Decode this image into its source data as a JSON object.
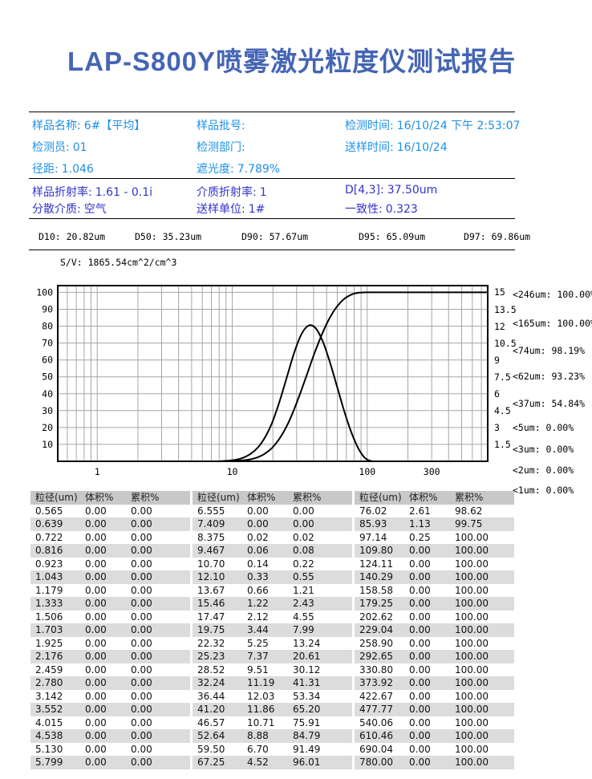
{
  "title": "LAP-S800Y喷雾激光粒度仪测试报告",
  "accent_colors": {
    "title_blue": "#4565b5",
    "info_azure": "#1d90e8",
    "info_indigo": "#3333cc"
  },
  "info_primary": {
    "color": "#1d90e8",
    "rows": [
      [
        {
          "label": "样品名称:",
          "value": "6#【平均】"
        },
        {
          "label": "样品批号:",
          "value": ""
        },
        {
          "label": "检测时间:",
          "value": "16/10/24 下午 2:53:07"
        }
      ],
      [
        {
          "label": "检测员:",
          "value": "01"
        },
        {
          "label": "检测部门:",
          "value": ""
        },
        {
          "label": "送样时间:",
          "value": "16/10/24"
        }
      ],
      [
        {
          "label": "径距:",
          "value": "1.046"
        },
        {
          "label": "遮光度:",
          "value": "7.789%"
        },
        null
      ]
    ]
  },
  "info_secondary": {
    "color": "#3333cc",
    "rows": [
      [
        {
          "label": "样品折射率:",
          "value": "1.61 - 0.1i"
        },
        {
          "label": "介质折射率:",
          "value": "1"
        },
        {
          "label": "D[4,3]:",
          "value": "37.50um"
        }
      ],
      [
        {
          "label": "分散介质:",
          "value": "空气"
        },
        {
          "label": "送样单位:",
          "value": "1#"
        },
        {
          "label": "一致性:",
          "value": "0.323"
        }
      ]
    ]
  },
  "d_values": [
    "D10: 20.82um",
    "D50: 35.23um",
    "D90: 57.67um",
    "D95: 65.09um",
    "D97: 69.86um"
  ],
  "chart_data": {
    "type": "line",
    "title": "",
    "sv_label": "S/V: 1865.54cm^2/cm^3",
    "x_scale": "log",
    "x_range": [
      0.51,
      780
    ],
    "x_tick_labels": [
      "1",
      "10",
      "100",
      "300"
    ],
    "x_tick_values": [
      1,
      10,
      100,
      300
    ],
    "grid": true,
    "left_axis": {
      "label": "累积%",
      "range": [
        0,
        104
      ],
      "ticks": [
        10,
        20,
        30,
        40,
        50,
        60,
        70,
        80,
        90,
        100
      ]
    },
    "right_axis": {
      "label": "体积%",
      "range": [
        0,
        15.6
      ],
      "ticks": [
        1.5,
        3,
        4.5,
        6,
        7.5,
        9,
        10.5,
        12,
        13.5,
        15
      ]
    },
    "series": [
      {
        "name": "累积%",
        "axis": "left",
        "x": [
          0.565,
          0.639,
          0.722,
          0.816,
          0.923,
          1.043,
          1.179,
          1.333,
          1.506,
          1.703,
          1.925,
          2.176,
          2.459,
          2.78,
          3.142,
          3.552,
          4.015,
          4.538,
          5.13,
          5.799,
          6.555,
          7.409,
          8.375,
          9.467,
          10.7,
          12.1,
          13.67,
          15.46,
          17.47,
          19.75,
          22.32,
          25.23,
          28.52,
          32.24,
          36.44,
          41.2,
          46.57,
          52.64,
          59.5,
          67.25,
          76.02,
          85.93,
          97.14,
          109.8,
          124.11,
          140.29,
          158.58,
          179.25,
          202.62,
          229.04,
          258.9,
          292.65,
          330.8,
          373.92,
          422.67,
          477.77,
          540.06,
          610.46,
          690.04,
          780.0
        ],
        "y": [
          0,
          0,
          0,
          0,
          0,
          0,
          0,
          0,
          0,
          0,
          0,
          0,
          0,
          0,
          0,
          0,
          0,
          0,
          0,
          0,
          0,
          0,
          0.02,
          0.08,
          0.22,
          0.55,
          1.21,
          2.43,
          4.55,
          7.99,
          13.24,
          20.61,
          30.12,
          41.31,
          53.34,
          65.2,
          75.91,
          84.79,
          91.49,
          96.01,
          98.62,
          99.75,
          100,
          100,
          100,
          100,
          100,
          100,
          100,
          100,
          100,
          100,
          100,
          100,
          100,
          100,
          100,
          100,
          100,
          100
        ]
      },
      {
        "name": "体积%",
        "axis": "right",
        "x": [
          0.565,
          0.639,
          0.722,
          0.816,
          0.923,
          1.043,
          1.179,
          1.333,
          1.506,
          1.703,
          1.925,
          2.176,
          2.459,
          2.78,
          3.142,
          3.552,
          4.015,
          4.538,
          5.13,
          5.799,
          6.555,
          7.409,
          8.375,
          9.467,
          10.7,
          12.1,
          13.67,
          15.46,
          17.47,
          19.75,
          22.32,
          25.23,
          28.52,
          32.24,
          36.44,
          41.2,
          46.57,
          52.64,
          59.5,
          67.25,
          76.02,
          85.93,
          97.14,
          109.8,
          124.11,
          140.29,
          158.58,
          179.25,
          202.62,
          229.04,
          258.9,
          292.65,
          330.8,
          373.92,
          422.67,
          477.77,
          540.06,
          610.46,
          690.04,
          780.0
        ],
        "y": [
          0,
          0,
          0,
          0,
          0,
          0,
          0,
          0,
          0,
          0,
          0,
          0,
          0,
          0,
          0,
          0,
          0,
          0,
          0,
          0,
          0,
          0,
          0.02,
          0.06,
          0.14,
          0.33,
          0.66,
          1.22,
          2.12,
          3.44,
          5.25,
          7.37,
          9.51,
          11.19,
          12.03,
          11.86,
          10.71,
          8.88,
          6.7,
          4.52,
          2.61,
          1.13,
          0.25,
          0,
          0,
          0,
          0,
          0,
          0,
          0,
          0,
          0,
          0,
          0,
          0,
          0,
          0,
          0,
          0,
          0
        ]
      }
    ],
    "annotations": [
      "<246um: 100.00%",
      "<165um: 100.00%",
      "<74um: 98.19%",
      "<62um: 93.23%",
      "<37um: 54.84%",
      "<5um: 0.00%",
      "<3um: 0.00%",
      "<2um: 0.00%",
      "<1um: 0.00%"
    ]
  },
  "tables": {
    "headers": [
      "粒径(um)",
      "体积%",
      "累积%"
    ],
    "blocks": [
      {
        "rows": [
          [
            "0.565",
            "0.00",
            "0.00"
          ],
          [
            "0.639",
            "0.00",
            "0.00"
          ],
          [
            "0.722",
            "0.00",
            "0.00"
          ],
          [
            "0.816",
            "0.00",
            "0.00"
          ],
          [
            "0.923",
            "0.00",
            "0.00"
          ],
          [
            "1.043",
            "0.00",
            "0.00"
          ],
          [
            "1.179",
            "0.00",
            "0.00"
          ],
          [
            "1.333",
            "0.00",
            "0.00"
          ],
          [
            "1.506",
            "0.00",
            "0.00"
          ],
          [
            "1.703",
            "0.00",
            "0.00"
          ],
          [
            "1.925",
            "0.00",
            "0.00"
          ],
          [
            "2.176",
            "0.00",
            "0.00"
          ],
          [
            "2.459",
            "0.00",
            "0.00"
          ],
          [
            "2.780",
            "0.00",
            "0.00"
          ],
          [
            "3.142",
            "0.00",
            "0.00"
          ],
          [
            "3.552",
            "0.00",
            "0.00"
          ],
          [
            "4.015",
            "0.00",
            "0.00"
          ],
          [
            "4.538",
            "0.00",
            "0.00"
          ],
          [
            "5.130",
            "0.00",
            "0.00"
          ],
          [
            "5.799",
            "0.00",
            "0.00"
          ]
        ]
      },
      {
        "rows": [
          [
            "6.555",
            "0.00",
            "0.00"
          ],
          [
            "7.409",
            "0.00",
            "0.00"
          ],
          [
            "8.375",
            "0.02",
            "0.02"
          ],
          [
            "9.467",
            "0.06",
            "0.08"
          ],
          [
            "10.70",
            "0.14",
            "0.22"
          ],
          [
            "12.10",
            "0.33",
            "0.55"
          ],
          [
            "13.67",
            "0.66",
            "1.21"
          ],
          [
            "15.46",
            "1.22",
            "2.43"
          ],
          [
            "17.47",
            "2.12",
            "4.55"
          ],
          [
            "19.75",
            "3.44",
            "7.99"
          ],
          [
            "22.32",
            "5.25",
            "13.24"
          ],
          [
            "25.23",
            "7.37",
            "20.61"
          ],
          [
            "28.52",
            "9.51",
            "30.12"
          ],
          [
            "32.24",
            "11.19",
            "41.31"
          ],
          [
            "36.44",
            "12.03",
            "53.34"
          ],
          [
            "41.20",
            "11.86",
            "65.20"
          ],
          [
            "46.57",
            "10.71",
            "75.91"
          ],
          [
            "52.64",
            "8.88",
            "84.79"
          ],
          [
            "59.50",
            "6.70",
            "91.49"
          ],
          [
            "67.25",
            "4.52",
            "96.01"
          ]
        ]
      },
      {
        "rows": [
          [
            "76.02",
            "2.61",
            "98.62"
          ],
          [
            "85.93",
            "1.13",
            "99.75"
          ],
          [
            "97.14",
            "0.25",
            "100.00"
          ],
          [
            "109.80",
            "0.00",
            "100.00"
          ],
          [
            "124.11",
            "0.00",
            "100.00"
          ],
          [
            "140.29",
            "0.00",
            "100.00"
          ],
          [
            "158.58",
            "0.00",
            "100.00"
          ],
          [
            "179.25",
            "0.00",
            "100.00"
          ],
          [
            "202.62",
            "0.00",
            "100.00"
          ],
          [
            "229.04",
            "0.00",
            "100.00"
          ],
          [
            "258.90",
            "0.00",
            "100.00"
          ],
          [
            "292.65",
            "0.00",
            "100.00"
          ],
          [
            "330.80",
            "0.00",
            "100.00"
          ],
          [
            "373.92",
            "0.00",
            "100.00"
          ],
          [
            "422.67",
            "0.00",
            "100.00"
          ],
          [
            "477.77",
            "0.00",
            "100.00"
          ],
          [
            "540.06",
            "0.00",
            "100.00"
          ],
          [
            "610.46",
            "0.00",
            "100.00"
          ],
          [
            "690.04",
            "0.00",
            "100.00"
          ],
          [
            "780.00",
            "0.00",
            "100.00"
          ]
        ]
      }
    ]
  }
}
